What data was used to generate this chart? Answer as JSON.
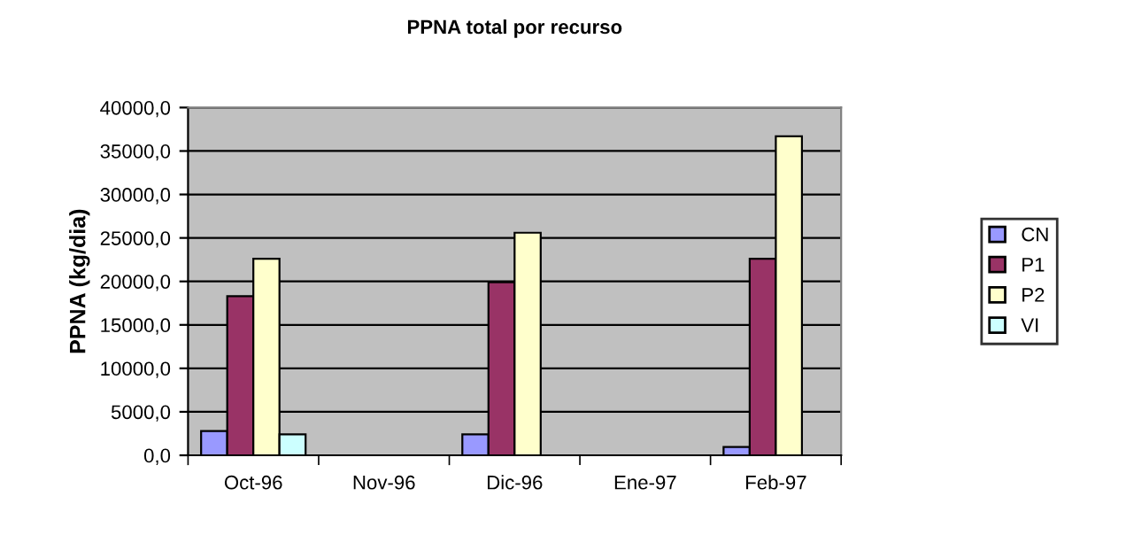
{
  "chart_data": {
    "type": "bar",
    "title": "PPNA total por recurso",
    "ylabel": "PPNA (kg/dia)",
    "categories": [
      "Oct-96",
      "Nov-96",
      "Dic-96",
      "Ene-97",
      "Feb-97"
    ],
    "series": [
      {
        "name": "CN",
        "color": "#9999ff",
        "values": [
          2800,
          null,
          2400,
          null,
          950
        ]
      },
      {
        "name": "P1",
        "color": "#993366",
        "values": [
          18300,
          null,
          19900,
          null,
          22600
        ]
      },
      {
        "name": "P2",
        "color": "#ffffcc",
        "values": [
          22600,
          null,
          25600,
          null,
          36700
        ]
      },
      {
        "name": "VI",
        "color": "#ccffff",
        "values": [
          2400,
          null,
          null,
          null,
          null
        ]
      }
    ],
    "ylim": [
      0,
      40000
    ],
    "yticks": [
      {
        "value": 0,
        "label": "0,0"
      },
      {
        "value": 5000,
        "label": "5000,0"
      },
      {
        "value": 10000,
        "label": "10000,0"
      },
      {
        "value": 15000,
        "label": "15000,0"
      },
      {
        "value": 20000,
        "label": "20000,0"
      },
      {
        "value": 25000,
        "label": "25000,0"
      },
      {
        "value": 30000,
        "label": "30000,0"
      },
      {
        "value": 35000,
        "label": "35000,0"
      },
      {
        "value": 40000,
        "label": "40000,0"
      }
    ],
    "grid": "y",
    "legend": "right"
  }
}
